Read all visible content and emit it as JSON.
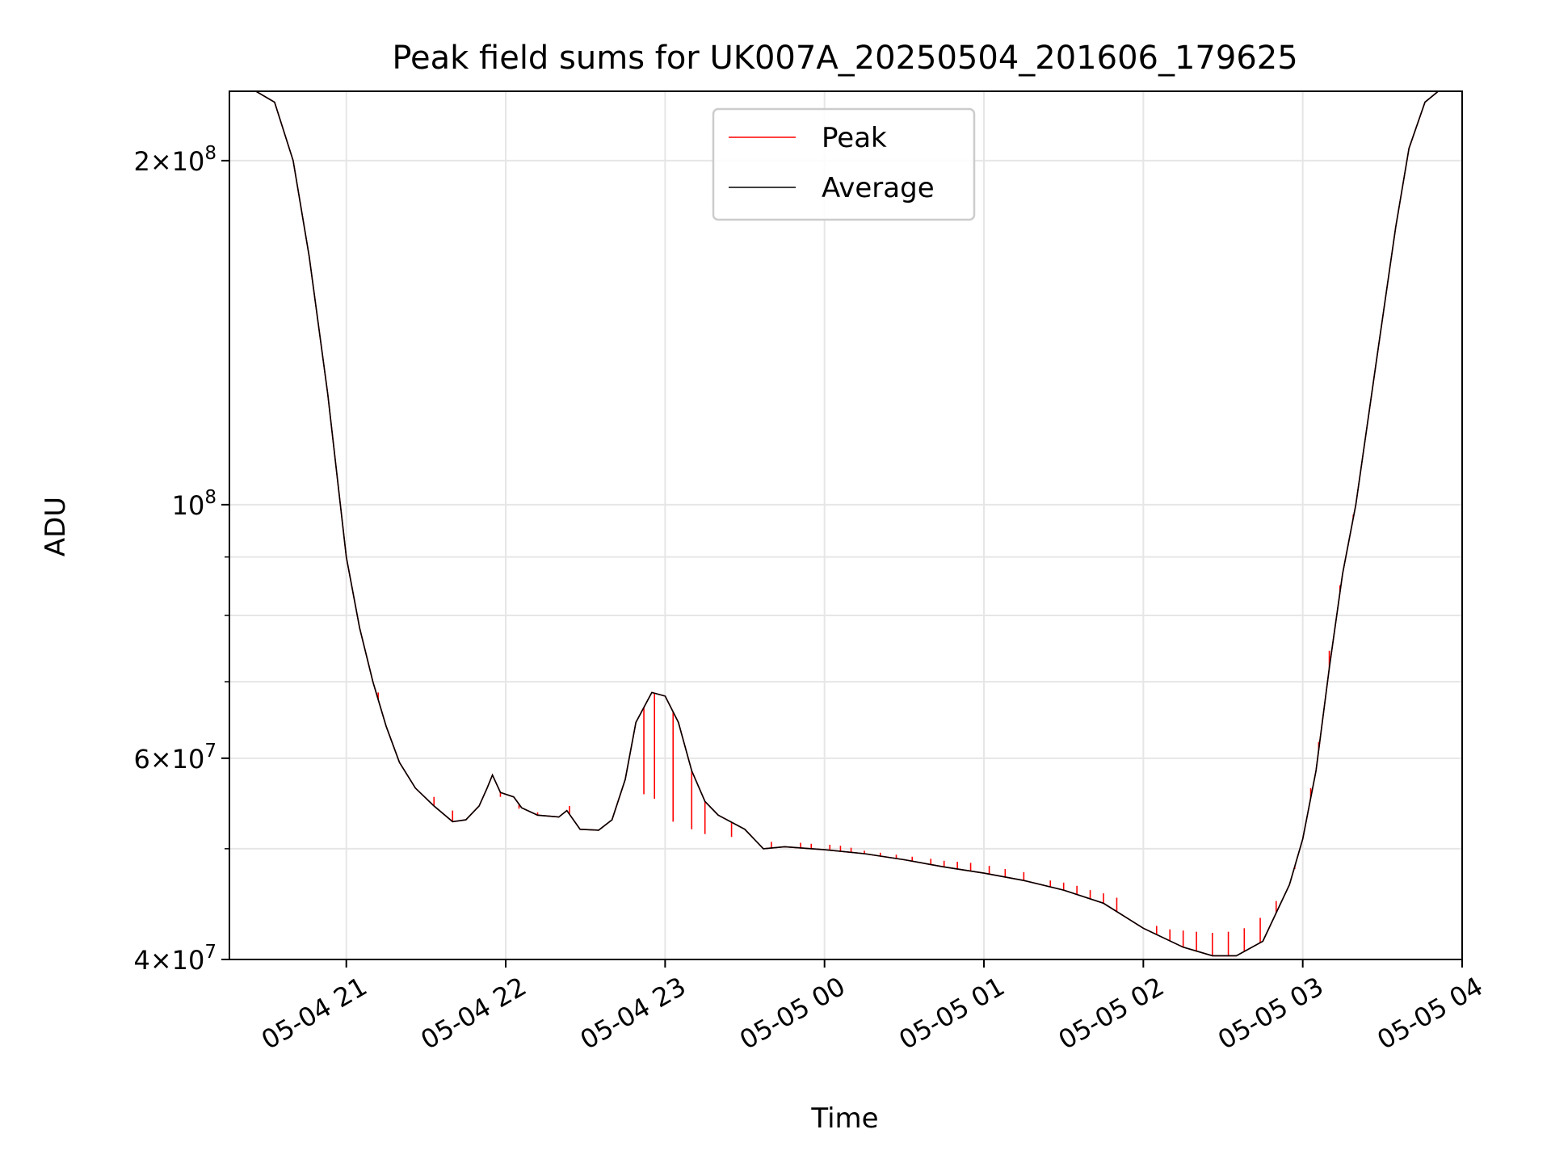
{
  "chart_data": {
    "type": "line",
    "title": "Peak field sums for UK007A_20250504_201606_179625",
    "xlabel": "Time",
    "ylabel": "ADU",
    "y_scale": "log",
    "ylim": [
      40000000,
      230000000
    ],
    "xlim": [
      "05-04 20:16",
      "05-05 04:00"
    ],
    "grid": true,
    "legend_position": "top-center",
    "x_ticks": [
      {
        "t": "05-04 21:00",
        "label": "05-04 21"
      },
      {
        "t": "05-04 22:00",
        "label": "05-04 22"
      },
      {
        "t": "05-04 23:00",
        "label": "05-04 23"
      },
      {
        "t": "05-05 00:00",
        "label": "05-05 00"
      },
      {
        "t": "05-05 01:00",
        "label": "05-05 01"
      },
      {
        "t": "05-05 02:00",
        "label": "05-05 02"
      },
      {
        "t": "05-05 03:00",
        "label": "05-05 03"
      },
      {
        "t": "05-05 04:00",
        "label": "05-05 04"
      }
    ],
    "y_ticks_major": [
      {
        "v": 40000000,
        "base": "4",
        "exp": "7"
      },
      {
        "v": 60000000,
        "base": "6",
        "exp": "7"
      },
      {
        "v": 100000000,
        "base": "",
        "exp": "8"
      },
      {
        "v": 200000000,
        "base": "2",
        "exp": "8"
      }
    ],
    "y_ticks_minor": [
      50000000,
      70000000,
      80000000,
      90000000
    ],
    "series": [
      {
        "name": "Peak",
        "color": "#ff0000",
        "spikes": [
          [
            "05-04 21:12",
            68500000
          ],
          [
            "05-04 21:33",
            55500000
          ],
          [
            "05-04 21:40",
            54000000
          ],
          [
            "05-04 21:58",
            55500000
          ],
          [
            "05-04 22:05",
            54200000
          ],
          [
            "05-04 22:12",
            53800000
          ],
          [
            "05-04 22:24",
            54500000
          ],
          [
            "05-04 22:52",
            55800000
          ],
          [
            "05-04 22:56",
            55300000
          ],
          [
            "05-04 23:03",
            52800000
          ],
          [
            "05-04 23:10",
            52000000
          ],
          [
            "05-04 23:15",
            51500000
          ],
          [
            "05-04 23:25",
            51200000
          ],
          [
            "05-04 23:40",
            50700000
          ],
          [
            "05-04 23:51",
            50600000
          ],
          [
            "05-04 23:55",
            50500000
          ],
          [
            "05-05 00:02",
            50400000
          ],
          [
            "05-05 00:06",
            50300000
          ],
          [
            "05-05 00:10",
            50100000
          ],
          [
            "05-05 00:15",
            49800000
          ],
          [
            "05-05 00:21",
            49600000
          ],
          [
            "05-05 00:27",
            49400000
          ],
          [
            "05-05 00:33",
            49200000
          ],
          [
            "05-05 00:40",
            49000000
          ],
          [
            "05-05 00:45",
            48800000
          ],
          [
            "05-05 00:50",
            48700000
          ],
          [
            "05-05 00:55",
            48600000
          ],
          [
            "05-05 01:02",
            48300000
          ],
          [
            "05-05 01:08",
            48000000
          ],
          [
            "05-05 01:15",
            47700000
          ],
          [
            "05-05 01:25",
            46900000
          ],
          [
            "05-05 01:30",
            46700000
          ],
          [
            "05-05 01:35",
            46400000
          ],
          [
            "05-05 01:40",
            46000000
          ],
          [
            "05-05 01:45",
            45700000
          ],
          [
            "05-05 01:50",
            45300000
          ],
          [
            "05-05 02:05",
            42800000
          ],
          [
            "05-05 02:10",
            42500000
          ],
          [
            "05-05 02:15",
            42400000
          ],
          [
            "05-05 02:20",
            42300000
          ],
          [
            "05-05 02:26",
            42200000
          ],
          [
            "05-05 02:32",
            42300000
          ],
          [
            "05-05 02:38",
            42600000
          ],
          [
            "05-05 02:44",
            43500000
          ],
          [
            "05-05 02:50",
            45000000
          ],
          [
            "05-05 02:57",
            48000000
          ],
          [
            "05-05 03:03",
            56500000
          ],
          [
            "05-05 03:06",
            62000000
          ],
          [
            "05-05 03:10",
            74500000
          ],
          [
            "05-05 03:14",
            85000000
          ],
          [
            "05-05 03:19",
            98000000
          ]
        ]
      },
      {
        "name": "Average",
        "color": "#000000",
        "points": [
          [
            "05-04 20:16",
            230000000
          ],
          [
            "05-04 20:26",
            230000000
          ],
          [
            "05-04 20:33",
            225000000
          ],
          [
            "05-04 20:40",
            200000000
          ],
          [
            "05-04 20:46",
            165000000
          ],
          [
            "05-04 20:53",
            125000000
          ],
          [
            "05-04 21:00",
            90000000
          ],
          [
            "05-04 21:05",
            78000000
          ],
          [
            "05-04 21:10",
            70000000
          ],
          [
            "05-04 21:15",
            64000000
          ],
          [
            "05-04 21:20",
            59500000
          ],
          [
            "05-04 21:26",
            56500000
          ],
          [
            "05-04 21:33",
            54500000
          ],
          [
            "05-04 21:40",
            52800000
          ],
          [
            "05-04 21:45",
            53000000
          ],
          [
            "05-04 21:50",
            54500000
          ],
          [
            "05-04 21:53",
            56500000
          ],
          [
            "05-04 21:55",
            58000000
          ],
          [
            "05-04 21:58",
            56000000
          ],
          [
            "05-04 22:03",
            55500000
          ],
          [
            "05-04 22:06",
            54300000
          ],
          [
            "05-04 22:12",
            53500000
          ],
          [
            "05-04 22:20",
            53300000
          ],
          [
            "05-04 22:23",
            54000000
          ],
          [
            "05-04 22:28",
            52000000
          ],
          [
            "05-04 22:35",
            51900000
          ],
          [
            "05-04 22:40",
            53000000
          ],
          [
            "05-04 22:45",
            57500000
          ],
          [
            "05-04 22:49",
            64500000
          ],
          [
            "05-04 22:55",
            68500000
          ],
          [
            "05-04 23:00",
            68000000
          ],
          [
            "05-04 23:05",
            64500000
          ],
          [
            "05-04 23:10",
            58500000
          ],
          [
            "05-04 23:15",
            55000000
          ],
          [
            "05-04 23:20",
            53500000
          ],
          [
            "05-04 23:30",
            52000000
          ],
          [
            "05-04 23:37",
            50000000
          ],
          [
            "05-04 23:45",
            50200000
          ],
          [
            "05-05 00:00",
            49900000
          ],
          [
            "05-05 00:15",
            49500000
          ],
          [
            "05-05 00:30",
            48900000
          ],
          [
            "05-05 00:45",
            48200000
          ],
          [
            "05-05 01:00",
            47600000
          ],
          [
            "05-05 01:15",
            46900000
          ],
          [
            "05-05 01:30",
            46000000
          ],
          [
            "05-05 01:45",
            44800000
          ],
          [
            "05-05 02:00",
            42600000
          ],
          [
            "05-05 02:15",
            41000000
          ],
          [
            "05-05 02:26",
            40300000
          ],
          [
            "05-05 02:35",
            40300000
          ],
          [
            "05-05 02:45",
            41500000
          ],
          [
            "05-05 02:55",
            46500000
          ],
          [
            "05-05 03:00",
            51000000
          ],
          [
            "05-05 03:05",
            58500000
          ],
          [
            "05-05 03:10",
            72000000
          ],
          [
            "05-05 03:15",
            87000000
          ],
          [
            "05-05 03:20",
            100000000
          ],
          [
            "05-05 03:28",
            135000000
          ],
          [
            "05-05 03:35",
            175000000
          ],
          [
            "05-05 03:40",
            205000000
          ],
          [
            "05-05 03:46",
            225000000
          ],
          [
            "05-05 03:51",
            230000000
          ],
          [
            "05-05 04:00",
            230000000
          ]
        ]
      }
    ]
  }
}
